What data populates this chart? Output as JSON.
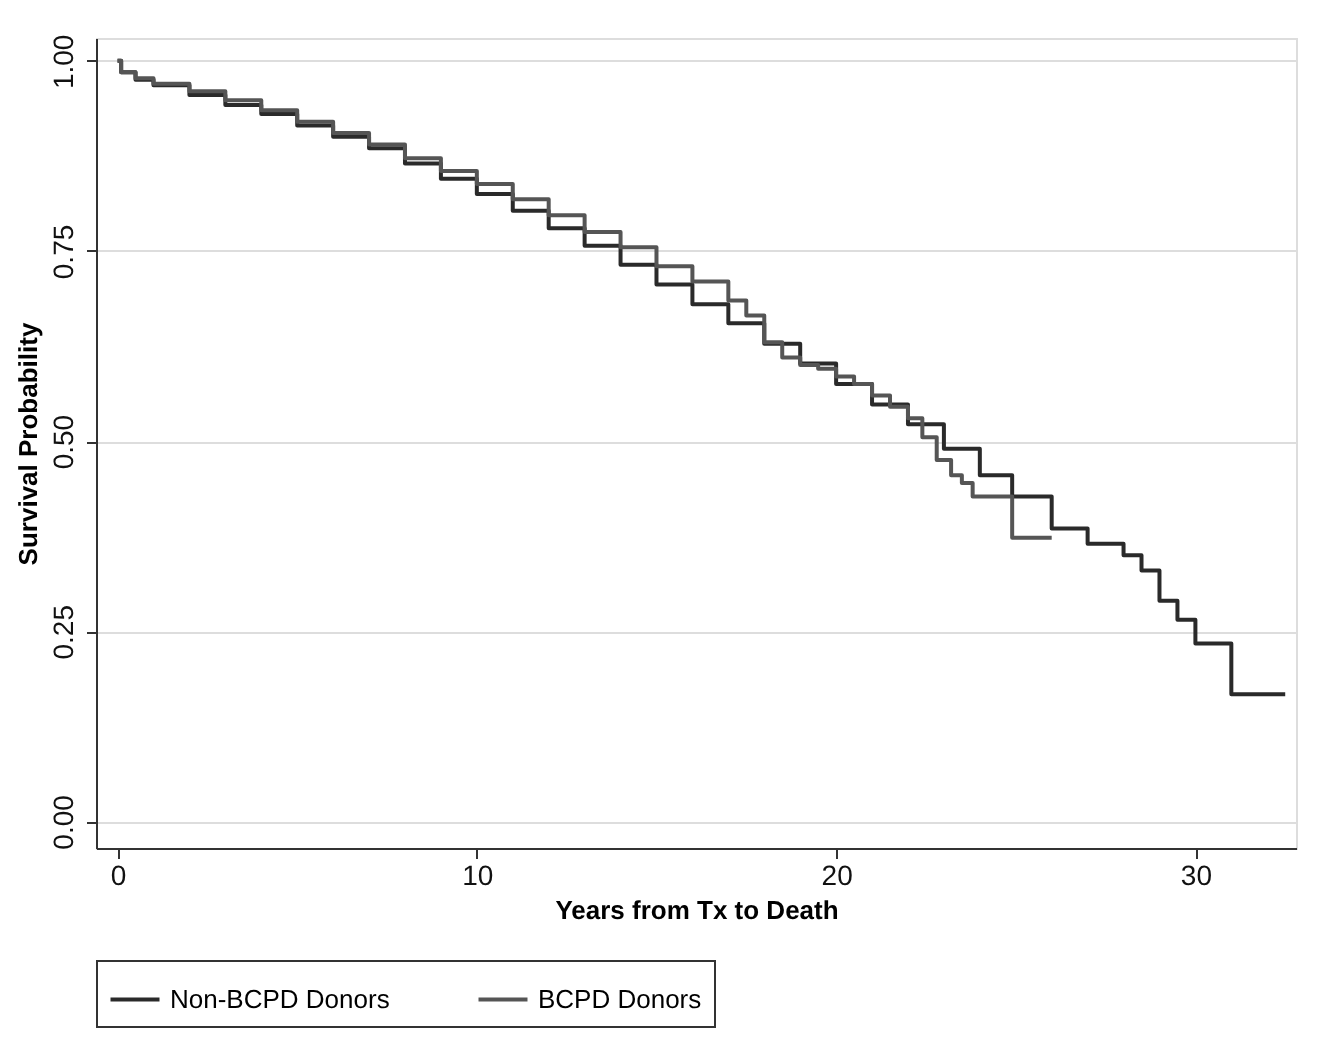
{
  "chart_data": {
    "type": "step",
    "xlabel": "Years from Tx to Death",
    "ylabel": "Survival Probability",
    "xlim": [
      -0.6,
      32.8
    ],
    "ylim": [
      -0.035,
      1.03
    ],
    "xticks": [
      0,
      10,
      20,
      30
    ],
    "yticks": [
      {
        "value": 0,
        "label": "0.00"
      },
      {
        "value": 0.25,
        "label": "0.25"
      },
      {
        "value": 0.5,
        "label": "0.50"
      },
      {
        "value": 0.75,
        "label": "0.75"
      },
      {
        "value": 1,
        "label": "1.00"
      }
    ],
    "grid": "y",
    "legend": "bottom",
    "line_style": "solid",
    "marker": "none",
    "series": [
      {
        "name": "Non-BCPD Donors",
        "color": "#2a2a2a",
        "x": [
          0,
          0.1,
          0.5,
          1,
          2,
          3,
          4,
          5,
          6,
          7,
          8,
          9,
          10,
          11,
          12,
          13,
          14,
          15,
          16,
          17,
          18,
          19,
          20,
          21,
          22,
          23,
          24,
          24.9,
          26,
          27,
          28,
          28.5,
          29,
          29.5,
          30,
          31,
          31,
          32.5
        ],
        "values": [
          1,
          0.985,
          0.975,
          0.968,
          0.955,
          0.942,
          0.93,
          0.915,
          0.9,
          0.885,
          0.865,
          0.845,
          0.825,
          0.803,
          0.78,
          0.757,
          0.732,
          0.706,
          0.68,
          0.655,
          0.628,
          0.602,
          0.575,
          0.548,
          0.522,
          0.49,
          0.455,
          0.427,
          0.385,
          0.365,
          0.35,
          0.33,
          0.29,
          0.265,
          0.234,
          0.234,
          0.167,
          0.167
        ]
      },
      {
        "name": "BCPD Donors",
        "color": "#555555",
        "x": [
          0,
          0.1,
          0.5,
          1,
          2,
          3,
          4,
          5,
          6,
          7,
          8,
          9,
          10,
          11,
          12,
          13,
          14,
          15,
          16,
          17,
          17.5,
          18,
          18.5,
          19,
          19.5,
          20,
          20.5,
          21,
          21.5,
          22,
          22.4,
          22.8,
          23.2,
          23.5,
          23.8,
          24.9,
          24.9,
          26
        ],
        "values": [
          1,
          0.985,
          0.977,
          0.97,
          0.96,
          0.948,
          0.935,
          0.92,
          0.905,
          0.89,
          0.872,
          0.855,
          0.838,
          0.818,
          0.797,
          0.775,
          0.755,
          0.73,
          0.71,
          0.685,
          0.665,
          0.63,
          0.61,
          0.6,
          0.595,
          0.585,
          0.575,
          0.56,
          0.545,
          0.53,
          0.505,
          0.475,
          0.455,
          0.445,
          0.427,
          0.427,
          0.373,
          0.373
        ]
      }
    ]
  }
}
